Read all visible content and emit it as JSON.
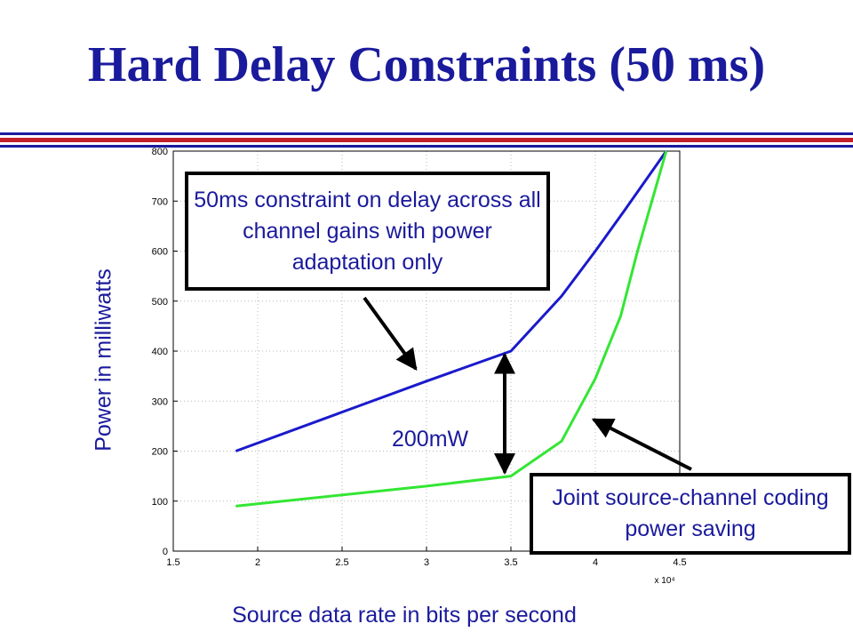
{
  "slide": {
    "title": "Hard Delay Constraints (50 ms)"
  },
  "chart_data": {
    "type": "line",
    "title": "",
    "xlabel": "Source data rate in bits per second",
    "ylabel": "Power in milliwatts",
    "x_exponent_label": "x 10⁴",
    "xlim": [
      1.5,
      4.5
    ],
    "ylim": [
      0,
      800
    ],
    "xticks": [
      "1.5",
      "2",
      "2.5",
      "3",
      "3.5",
      "4",
      "4.5"
    ],
    "yticks": [
      "0",
      "100",
      "200",
      "300",
      "400",
      "500",
      "600",
      "700",
      "800"
    ],
    "x_tick_values": [
      1.5,
      2,
      2.5,
      3,
      3.5,
      4,
      4.5
    ],
    "y_tick_values": [
      0,
      100,
      200,
      300,
      400,
      500,
      600,
      700,
      800
    ],
    "grid": true,
    "series": [
      {
        "color": "#1a1acc",
        "points": [
          [
            1.87,
            200
          ],
          [
            3.0,
            340
          ],
          [
            3.5,
            400
          ],
          [
            3.8,
            510
          ],
          [
            4.0,
            600
          ],
          [
            4.17,
            680
          ],
          [
            4.42,
            800
          ]
        ]
      },
      {
        "color": "#33e633",
        "points": [
          [
            1.87,
            90
          ],
          [
            3.0,
            130
          ],
          [
            3.5,
            150
          ],
          [
            3.8,
            220
          ],
          [
            4.0,
            345
          ],
          [
            4.15,
            470
          ],
          [
            4.25,
            600
          ],
          [
            4.42,
            800
          ]
        ]
      }
    ],
    "annotations": {
      "delay_box": "50ms constraint on delay across all channel gains with power adaptation only",
      "saving_box": "Joint source-channel coding power saving",
      "gap_label": "200mW"
    }
  },
  "colors": {
    "accent": "#1a1a9c",
    "rule_red": "#c01f2a",
    "blue_series": "#1a1acc",
    "green_series": "#33e633"
  }
}
